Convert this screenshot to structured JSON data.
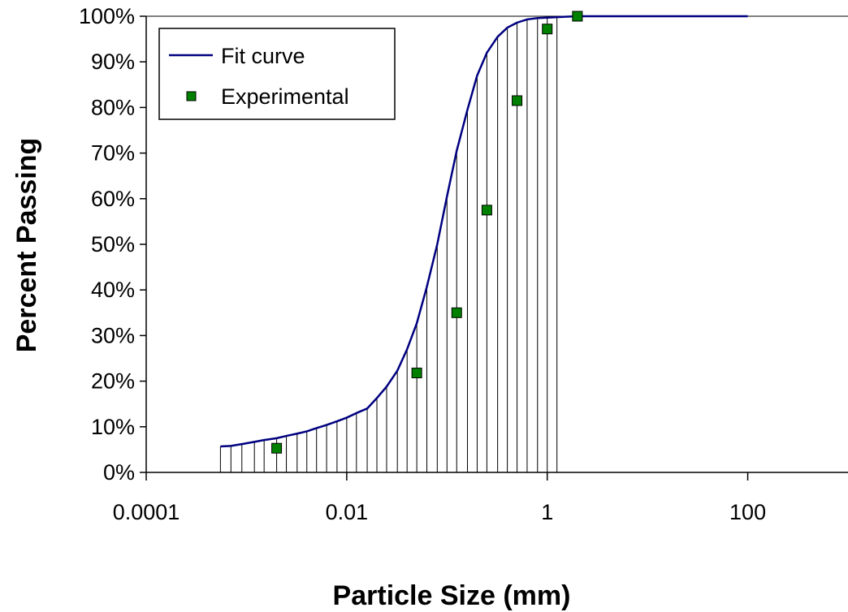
{
  "chart_data": {
    "type": "scatter",
    "xlabel": "Particle Size (mm)",
    "ylabel": "Percent Passing",
    "x_scale": "log",
    "xlim": [
      0.0001,
      1000
    ],
    "ylim": [
      0,
      100
    ],
    "x_ticks": [
      {
        "value": 0.0001,
        "label": "0.0001"
      },
      {
        "value": 0.01,
        "label": "0.01"
      },
      {
        "value": 1,
        "label": "1"
      },
      {
        "value": 100,
        "label": "100"
      }
    ],
    "y_ticks": [
      {
        "value": 0,
        "label": "0%"
      },
      {
        "value": 10,
        "label": "10%"
      },
      {
        "value": 20,
        "label": "20%"
      },
      {
        "value": 30,
        "label": "30%"
      },
      {
        "value": 40,
        "label": "40%"
      },
      {
        "value": 50,
        "label": "50%"
      },
      {
        "value": 60,
        "label": "60%"
      },
      {
        "value": 70,
        "label": "70%"
      },
      {
        "value": 80,
        "label": "80%"
      },
      {
        "value": 90,
        "label": "90%"
      },
      {
        "value": 100,
        "label": "100%"
      }
    ],
    "legend_position": "top-left",
    "series": [
      {
        "name": "Fit curve",
        "kind": "line",
        "color": "#000080",
        "x": [
          0.00055,
          0.0007,
          0.0009,
          0.0012,
          0.0015,
          0.002,
          0.0025,
          0.0032,
          0.004,
          0.005,
          0.0063,
          0.008,
          0.01,
          0.0125,
          0.016,
          0.02,
          0.025,
          0.032,
          0.04,
          0.05,
          0.063,
          0.08,
          0.1,
          0.125,
          0.16,
          0.2,
          0.25,
          0.32,
          0.4,
          0.5,
          0.63,
          0.8,
          1.0,
          1.25,
          1.6,
          2.0,
          2.5,
          3.2,
          4.0,
          5.0,
          6.3,
          8.0,
          10,
          20,
          50,
          100
        ],
        "y": [
          5.7,
          5.8,
          6.2,
          6.7,
          7.1,
          7.5,
          8.0,
          8.5,
          9.0,
          9.7,
          10.4,
          11.2,
          12.0,
          13.0,
          14.0,
          16.3,
          18.8,
          22.3,
          27.0,
          32.7,
          40.7,
          50.0,
          60.5,
          70.5,
          79.5,
          87.0,
          92.0,
          95.5,
          97.5,
          98.6,
          99.3,
          99.6,
          99.7,
          99.8,
          99.9,
          100,
          100,
          100,
          100,
          100,
          100,
          100,
          100,
          100,
          100,
          100
        ],
        "drop_lines": true
      },
      {
        "name": "Experimental",
        "kind": "marker",
        "color": "#008000",
        "x": [
          0.002,
          0.05,
          0.125,
          0.25,
          0.5,
          1.0,
          2.0
        ],
        "y": [
          5.3,
          21.8,
          35.0,
          57.5,
          81.5,
          97.2,
          100
        ]
      }
    ]
  }
}
